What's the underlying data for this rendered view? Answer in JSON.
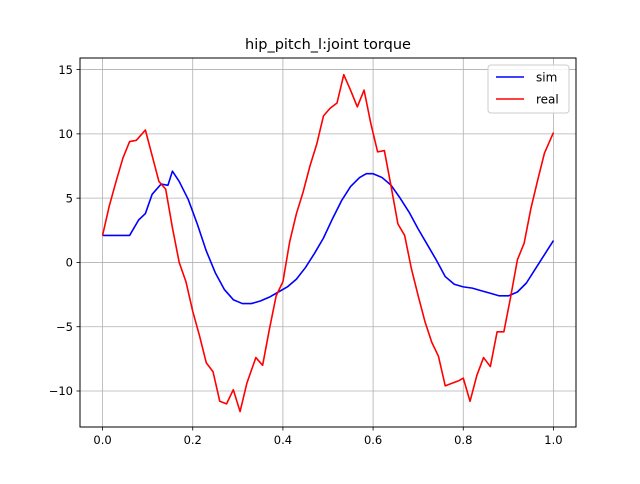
{
  "chart_data": {
    "type": "line",
    "title": "hip_pitch_l:joint torque",
    "xlabel": "",
    "ylabel": "",
    "xlim": [
      -0.05,
      1.05
    ],
    "ylim": [
      -12.8,
      15.9
    ],
    "x_ticks": [
      0.0,
      0.2,
      0.4,
      0.6,
      0.8,
      1.0
    ],
    "x_tick_labels": [
      "0.0",
      "0.2",
      "0.4",
      "0.6",
      "0.8",
      "1.0"
    ],
    "y_ticks": [
      -10,
      -5,
      0,
      5,
      10,
      15
    ],
    "y_tick_labels": [
      "−10",
      "−5",
      "0",
      "5",
      "10",
      "15"
    ],
    "grid": true,
    "legend_position": "top-right",
    "series": [
      {
        "name": "sim",
        "color": "#0000ff",
        "x": [
          0.0,
          0.02,
          0.04,
          0.06,
          0.08,
          0.095,
          0.11,
          0.13,
          0.145,
          0.155,
          0.17,
          0.19,
          0.21,
          0.23,
          0.25,
          0.27,
          0.29,
          0.31,
          0.33,
          0.35,
          0.37,
          0.39,
          0.41,
          0.43,
          0.45,
          0.47,
          0.49,
          0.51,
          0.53,
          0.55,
          0.57,
          0.585,
          0.6,
          0.62,
          0.64,
          0.66,
          0.68,
          0.7,
          0.72,
          0.74,
          0.76,
          0.78,
          0.8,
          0.82,
          0.84,
          0.86,
          0.88,
          0.9,
          0.92,
          0.94,
          0.96,
          0.98,
          1.0
        ],
        "y": [
          2.1,
          2.1,
          2.1,
          2.1,
          3.3,
          3.8,
          5.3,
          6.1,
          6.0,
          7.1,
          6.3,
          4.9,
          3.0,
          0.9,
          -0.8,
          -2.1,
          -2.9,
          -3.2,
          -3.2,
          -3.0,
          -2.7,
          -2.3,
          -1.9,
          -1.3,
          -0.4,
          0.7,
          1.9,
          3.4,
          4.8,
          5.9,
          6.6,
          6.9,
          6.9,
          6.6,
          6.0,
          5.0,
          3.9,
          2.6,
          1.4,
          0.2,
          -1.1,
          -1.7,
          -1.9,
          -2.0,
          -2.2,
          -2.4,
          -2.6,
          -2.6,
          -2.3,
          -1.6,
          -0.5,
          0.6,
          1.7
        ]
      },
      {
        "name": "real",
        "color": "#ff0000",
        "x": [
          0.0,
          0.015,
          0.03,
          0.045,
          0.06,
          0.075,
          0.095,
          0.11,
          0.125,
          0.14,
          0.155,
          0.17,
          0.185,
          0.2,
          0.215,
          0.23,
          0.245,
          0.26,
          0.275,
          0.29,
          0.305,
          0.32,
          0.34,
          0.355,
          0.37,
          0.385,
          0.4,
          0.415,
          0.43,
          0.445,
          0.46,
          0.475,
          0.49,
          0.505,
          0.52,
          0.535,
          0.55,
          0.565,
          0.58,
          0.595,
          0.61,
          0.625,
          0.64,
          0.655,
          0.67,
          0.685,
          0.7,
          0.715,
          0.73,
          0.745,
          0.76,
          0.775,
          0.79,
          0.8,
          0.815,
          0.83,
          0.845,
          0.86,
          0.875,
          0.89,
          0.905,
          0.92,
          0.935,
          0.95,
          0.965,
          0.98,
          1.0
        ],
        "y": [
          2.1,
          4.4,
          6.3,
          8.1,
          9.4,
          9.5,
          10.3,
          8.3,
          6.3,
          5.7,
          2.7,
          0.0,
          -1.5,
          -3.8,
          -5.7,
          -7.8,
          -8.5,
          -10.8,
          -11.0,
          -9.9,
          -11.6,
          -9.4,
          -7.4,
          -8.0,
          -5.2,
          -2.6,
          -1.5,
          1.6,
          3.8,
          5.5,
          7.5,
          9.2,
          11.4,
          12.0,
          12.4,
          14.6,
          13.4,
          12.1,
          13.4,
          10.8,
          8.6,
          8.7,
          5.9,
          3.0,
          2.1,
          -0.5,
          -2.6,
          -4.6,
          -6.2,
          -7.3,
          -9.6,
          -9.4,
          -9.2,
          -9.0,
          -10.8,
          -8.8,
          -7.4,
          -8.1,
          -5.4,
          -5.4,
          -2.7,
          0.2,
          1.5,
          4.2,
          6.4,
          8.5,
          10.1
        ]
      }
    ]
  }
}
